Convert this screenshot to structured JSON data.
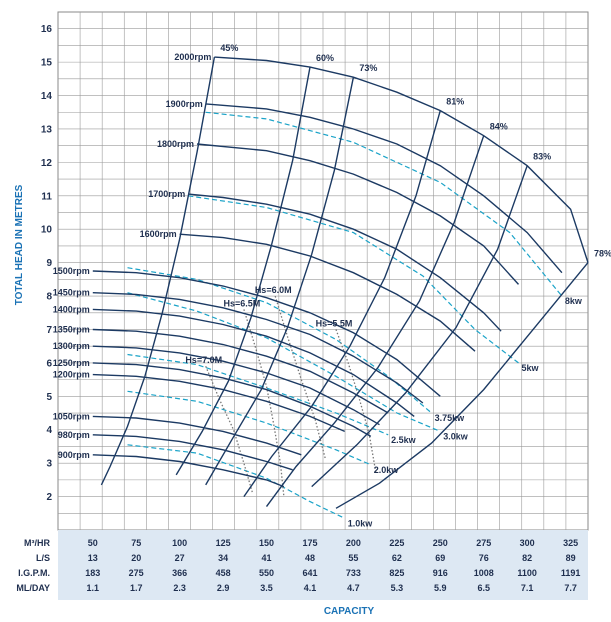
{
  "chart_data": {
    "type": "line",
    "ylabel": "TOTAL HEAD IN METRES",
    "xlabel": "CAPACITY",
    "ylim": [
      1,
      16.5
    ],
    "xlim": [
      30,
      335
    ],
    "y_ticks": [
      "2",
      "3",
      "4",
      "5",
      "6",
      "7",
      "8",
      "9",
      "10",
      "11",
      "12",
      "13",
      "14",
      "15",
      "16"
    ],
    "capacity_table": {
      "rows": [
        {
          "label": "M³/HR",
          "values": [
            "50",
            "75",
            "100",
            "125",
            "150",
            "175",
            "200",
            "225",
            "250",
            "275",
            "300",
            "325"
          ]
        },
        {
          "label": "L/S",
          "values": [
            "13",
            "20",
            "27",
            "34",
            "41",
            "48",
            "55",
            "62",
            "69",
            "76",
            "82",
            "89"
          ]
        },
        {
          "label": "I.G.P.M.",
          "values": [
            "183",
            "275",
            "366",
            "458",
            "550",
            "641",
            "733",
            "825",
            "916",
            "1008",
            "1100",
            "1191"
          ]
        },
        {
          "label": "ML/DAY",
          "values": [
            "1.1",
            "1.7",
            "2.3",
            "2.9",
            "3.5",
            "4.1",
            "4.7",
            "5.3",
            "5.9",
            "6.5",
            "7.1",
            "7.7"
          ]
        }
      ]
    },
    "speed_curves": [
      {
        "name": "2000rpm",
        "points": [
          [
            120,
            15.15
          ],
          [
            150,
            15.05
          ],
          [
            175,
            14.85
          ],
          [
            200,
            14.55
          ],
          [
            225,
            14.1
          ],
          [
            250,
            13.55
          ],
          [
            275,
            12.8
          ],
          [
            300,
            11.9
          ],
          [
            325,
            10.6
          ],
          [
            335,
            9.0
          ]
        ]
      },
      {
        "name": "1900rpm",
        "points": [
          [
            115,
            13.75
          ],
          [
            150,
            13.6
          ],
          [
            175,
            13.35
          ],
          [
            200,
            13.0
          ],
          [
            225,
            12.55
          ],
          [
            250,
            11.9
          ],
          [
            275,
            11.0
          ],
          [
            300,
            9.9
          ],
          [
            320,
            8.7
          ]
        ]
      },
      {
        "name": "1800rpm",
        "points": [
          [
            110,
            12.55
          ],
          [
            150,
            12.35
          ],
          [
            175,
            12.05
          ],
          [
            200,
            11.65
          ],
          [
            225,
            11.1
          ],
          [
            250,
            10.4
          ],
          [
            275,
            9.5
          ],
          [
            295,
            8.35
          ]
        ]
      },
      {
        "name": "1700rpm",
        "points": [
          [
            105,
            11.05
          ],
          [
            125,
            10.95
          ],
          [
            150,
            10.75
          ],
          [
            175,
            10.45
          ],
          [
            200,
            10.0
          ],
          [
            225,
            9.4
          ],
          [
            250,
            8.55
          ],
          [
            275,
            7.5
          ],
          [
            285,
            6.95
          ]
        ]
      },
      {
        "name": "1600rpm",
        "points": [
          [
            100,
            9.85
          ],
          [
            125,
            9.75
          ],
          [
            150,
            9.55
          ],
          [
            175,
            9.2
          ],
          [
            200,
            8.7
          ],
          [
            225,
            8.05
          ],
          [
            250,
            7.25
          ],
          [
            270,
            6.35
          ]
        ]
      },
      {
        "name": "1500rpm",
        "points": [
          [
            50,
            8.75
          ],
          [
            75,
            8.7
          ],
          [
            100,
            8.55
          ],
          [
            125,
            8.3
          ],
          [
            150,
            7.95
          ],
          [
            175,
            7.5
          ],
          [
            200,
            6.9
          ],
          [
            225,
            6.1
          ],
          [
            250,
            5.0
          ]
        ]
      },
      {
        "name": "1450rpm",
        "points": [
          [
            50,
            8.1
          ],
          [
            75,
            8.05
          ],
          [
            100,
            7.9
          ],
          [
            125,
            7.65
          ],
          [
            150,
            7.3
          ],
          [
            175,
            6.85
          ],
          [
            200,
            6.2
          ],
          [
            225,
            5.4
          ],
          [
            240,
            4.8
          ]
        ]
      },
      {
        "name": "1400rpm",
        "points": [
          [
            50,
            7.6
          ],
          [
            75,
            7.55
          ],
          [
            100,
            7.4
          ],
          [
            125,
            7.15
          ],
          [
            150,
            6.8
          ],
          [
            175,
            6.3
          ],
          [
            200,
            5.65
          ],
          [
            225,
            4.8
          ],
          [
            235,
            4.4
          ]
        ]
      },
      {
        "name": "1350rpm",
        "points": [
          [
            50,
            7.0
          ],
          [
            75,
            6.95
          ],
          [
            100,
            6.8
          ],
          [
            125,
            6.55
          ],
          [
            150,
            6.2
          ],
          [
            175,
            5.75
          ],
          [
            200,
            5.1
          ],
          [
            220,
            4.5
          ]
        ]
      },
      {
        "name": "1300rpm",
        "points": [
          [
            50,
            6.5
          ],
          [
            75,
            6.45
          ],
          [
            100,
            6.3
          ],
          [
            125,
            6.05
          ],
          [
            150,
            5.7
          ],
          [
            175,
            5.25
          ],
          [
            200,
            4.6
          ],
          [
            215,
            4.15
          ]
        ]
      },
      {
        "name": "1250rpm",
        "points": [
          [
            50,
            6.0
          ],
          [
            75,
            5.95
          ],
          [
            100,
            5.8
          ],
          [
            125,
            5.55
          ],
          [
            150,
            5.2
          ],
          [
            175,
            4.7
          ],
          [
            200,
            4.1
          ],
          [
            210,
            3.8
          ]
        ]
      },
      {
        "name": "1200rpm",
        "points": [
          [
            50,
            5.65
          ],
          [
            75,
            5.6
          ],
          [
            100,
            5.45
          ],
          [
            125,
            5.2
          ],
          [
            150,
            4.85
          ],
          [
            175,
            4.4
          ],
          [
            195,
            3.95
          ]
        ]
      },
      {
        "name": "1050rpm",
        "points": [
          [
            50,
            4.4
          ],
          [
            75,
            4.35
          ],
          [
            100,
            4.2
          ],
          [
            125,
            3.95
          ],
          [
            150,
            3.6
          ],
          [
            170,
            3.25
          ]
        ]
      },
      {
        "name": "980rpm",
        "points": [
          [
            50,
            3.85
          ],
          [
            75,
            3.8
          ],
          [
            100,
            3.65
          ],
          [
            125,
            3.4
          ],
          [
            150,
            3.05
          ],
          [
            165,
            2.8
          ]
        ]
      },
      {
        "name": "900rpm",
        "points": [
          [
            50,
            3.25
          ],
          [
            75,
            3.2
          ],
          [
            100,
            3.05
          ],
          [
            125,
            2.8
          ],
          [
            150,
            2.5
          ],
          [
            160,
            2.3
          ]
        ]
      }
    ],
    "efficiency_curves": [
      {
        "name": "45%",
        "points": [
          [
            120,
            15.15
          ],
          [
            110,
            12.3
          ],
          [
            100,
            9.7
          ],
          [
            90,
            7.5
          ],
          [
            80,
            5.6
          ],
          [
            70,
            4.1
          ],
          [
            60,
            2.9
          ],
          [
            55,
            2.35
          ]
        ]
      },
      {
        "name": "60%",
        "points": [
          [
            175,
            14.85
          ],
          [
            165,
            12.05
          ],
          [
            153,
            9.55
          ],
          [
            141,
            7.35
          ],
          [
            128,
            5.45
          ],
          [
            113,
            3.95
          ],
          [
            98,
            2.65
          ]
        ]
      },
      {
        "name": "73%",
        "points": [
          [
            200,
            14.55
          ],
          [
            189,
            11.75
          ],
          [
            176,
            9.25
          ],
          [
            162,
            7.05
          ],
          [
            147,
            5.2
          ],
          [
            130,
            3.7
          ],
          [
            115,
            2.35
          ]
        ]
      },
      {
        "name": "81%",
        "points": [
          [
            250,
            13.55
          ],
          [
            236,
            11.0
          ],
          [
            218,
            8.55
          ],
          [
            198,
            6.5
          ],
          [
            176,
            4.7
          ],
          [
            153,
            3.2
          ],
          [
            137,
            2.0
          ]
        ]
      },
      {
        "name": "84%",
        "points": [
          [
            275,
            12.8
          ],
          [
            258,
            10.2
          ],
          [
            238,
            7.85
          ],
          [
            214,
            5.85
          ],
          [
            189,
            4.2
          ],
          [
            167,
            2.9
          ],
          [
            150,
            1.7
          ]
        ]
      },
      {
        "name": "83%",
        "points": [
          [
            300,
            11.9
          ],
          [
            283,
            9.4
          ],
          [
            259,
            7.05
          ],
          [
            230,
            5.1
          ],
          [
            202,
            3.55
          ],
          [
            176,
            2.3
          ]
        ]
      },
      {
        "name": "78%",
        "points": [
          [
            335,
            9.0
          ],
          [
            305,
            7.1
          ],
          [
            275,
            5.2
          ],
          [
            245,
            3.6
          ],
          [
            215,
            2.4
          ],
          [
            190,
            1.65
          ]
        ]
      }
    ],
    "power_curves": [
      {
        "name": "8kw",
        "points": [
          [
            115,
            13.5
          ],
          [
            150,
            13.3
          ],
          [
            200,
            12.6
          ],
          [
            250,
            11.4
          ],
          [
            290,
            9.9
          ],
          [
            320,
            8.0
          ]
        ]
      },
      {
        "name": "5kw",
        "points": [
          [
            105,
            11.0
          ],
          [
            150,
            10.65
          ],
          [
            200,
            9.9
          ],
          [
            240,
            8.6
          ],
          [
            270,
            7.0
          ],
          [
            295,
            6.0
          ]
        ]
      },
      {
        "name": "3.75kw",
        "points": [
          [
            70,
            8.85
          ],
          [
            110,
            8.5
          ],
          [
            150,
            7.8
          ],
          [
            190,
            6.7
          ],
          [
            220,
            5.6
          ],
          [
            245,
            4.5
          ]
        ]
      },
      {
        "name": "3.0kw",
        "points": [
          [
            70,
            8.1
          ],
          [
            110,
            7.55
          ],
          [
            150,
            6.75
          ],
          [
            190,
            5.6
          ],
          [
            225,
            4.5
          ],
          [
            250,
            3.95
          ]
        ]
      },
      {
        "name": "2.5kw",
        "points": [
          [
            70,
            6.25
          ],
          [
            110,
            5.95
          ],
          [
            150,
            5.25
          ],
          [
            190,
            4.5
          ],
          [
            220,
            3.85
          ]
        ]
      },
      {
        "name": "2.0kw",
        "points": [
          [
            70,
            5.15
          ],
          [
            110,
            4.85
          ],
          [
            150,
            4.2
          ],
          [
            190,
            3.4
          ],
          [
            210,
            2.95
          ]
        ]
      },
      {
        "name": "1.0kw",
        "points": [
          [
            70,
            3.55
          ],
          [
            110,
            3.3
          ],
          [
            150,
            2.55
          ],
          [
            175,
            1.85
          ],
          [
            195,
            1.35
          ]
        ]
      }
    ],
    "npsh_curves": [
      {
        "name": "Hs=6.0M",
        "points": [
          [
            155,
            8.0
          ],
          [
            162,
            6.8
          ],
          [
            170,
            5.5
          ],
          [
            178,
            4.3
          ],
          [
            184,
            3.1
          ]
        ]
      },
      {
        "name": "Hs=6.5M",
        "points": [
          [
            137,
            7.6
          ],
          [
            144,
            6.4
          ],
          [
            150,
            5.3
          ],
          [
            154,
            4.2
          ],
          [
            158,
            3.0
          ],
          [
            160,
            2.0
          ]
        ]
      },
      {
        "name": "Hs=5.5M",
        "points": [
          [
            190,
            7.0
          ],
          [
            197,
            6.0
          ],
          [
            203,
            5.0
          ],
          [
            209,
            3.9
          ],
          [
            213,
            2.7
          ]
        ]
      },
      {
        "name": "Hs=7.0M",
        "points": [
          [
            115,
            5.9
          ],
          [
            123,
            4.9
          ],
          [
            131,
            4.0
          ],
          [
            137,
            3.0
          ],
          [
            142,
            2.1
          ]
        ]
      }
    ]
  }
}
